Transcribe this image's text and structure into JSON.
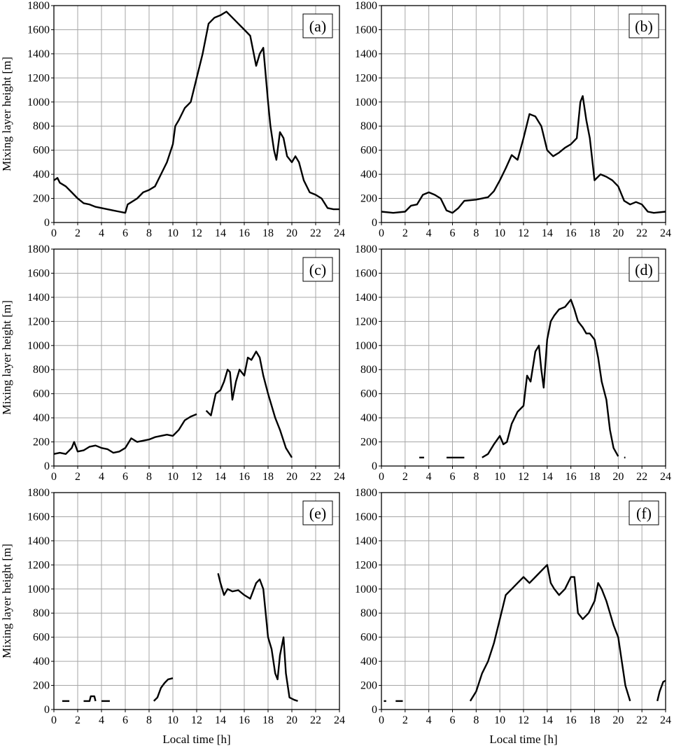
{
  "chart_data": [
    {
      "type": "line",
      "panel_label": "(a)",
      "xlabel": "",
      "ylabel": "Mixing layer height [m]",
      "xlim": [
        0,
        24
      ],
      "ylim": [
        0,
        1800
      ],
      "xticks": [
        "0",
        "2",
        "4",
        "6",
        "8",
        "10",
        "12",
        "14",
        "16",
        "18",
        "20",
        "22",
        "24"
      ],
      "yticks": [
        "0",
        "200",
        "400",
        "600",
        "800",
        "1000",
        "1200",
        "1400",
        "1600",
        "1800"
      ],
      "grid": true,
      "segments": [
        [
          [
            0,
            350
          ],
          [
            0.3,
            370
          ],
          [
            0.5,
            330
          ],
          [
            1,
            300
          ],
          [
            1.5,
            250
          ],
          [
            2,
            200
          ],
          [
            2.5,
            160
          ],
          [
            3,
            150
          ],
          [
            3.5,
            130
          ],
          [
            4,
            120
          ],
          [
            4.5,
            110
          ],
          [
            5,
            100
          ],
          [
            5.5,
            90
          ],
          [
            6,
            80
          ],
          [
            6.2,
            150
          ],
          [
            7,
            200
          ],
          [
            7.5,
            250
          ],
          [
            8,
            270
          ],
          [
            8.5,
            300
          ],
          [
            9,
            400
          ],
          [
            9.5,
            500
          ],
          [
            10,
            650
          ],
          [
            10.2,
            800
          ],
          [
            10.5,
            850
          ],
          [
            11,
            950
          ],
          [
            11.5,
            1000
          ],
          [
            12,
            1200
          ],
          [
            12.5,
            1400
          ],
          [
            13,
            1650
          ],
          [
            13.5,
            1700
          ],
          [
            14,
            1720
          ],
          [
            14.5,
            1750
          ],
          [
            15,
            1700
          ],
          [
            15.5,
            1650
          ],
          [
            16,
            1600
          ],
          [
            16.5,
            1550
          ],
          [
            17,
            1300
          ],
          [
            17.3,
            1400
          ],
          [
            17.6,
            1450
          ],
          [
            18,
            1000
          ],
          [
            18.2,
            800
          ],
          [
            18.5,
            600
          ],
          [
            18.7,
            520
          ],
          [
            19,
            750
          ],
          [
            19.3,
            700
          ],
          [
            19.6,
            550
          ],
          [
            20,
            500
          ],
          [
            20.3,
            550
          ],
          [
            20.6,
            500
          ],
          [
            21,
            350
          ],
          [
            21.5,
            250
          ],
          [
            22,
            230
          ],
          [
            22.5,
            200
          ],
          [
            23,
            120
          ],
          [
            23.5,
            110
          ],
          [
            24,
            110
          ]
        ]
      ]
    },
    {
      "type": "line",
      "panel_label": "(b)",
      "xlabel": "",
      "ylabel": "",
      "xlim": [
        0,
        24
      ],
      "ylim": [
        0,
        1800
      ],
      "xticks": [
        "0",
        "2",
        "4",
        "6",
        "8",
        "10",
        "12",
        "14",
        "16",
        "18",
        "20",
        "22",
        "24"
      ],
      "yticks": [
        "0",
        "200",
        "400",
        "600",
        "800",
        "1000",
        "1200",
        "1400",
        "1600",
        "1800"
      ],
      "grid": true,
      "segments": [
        [
          [
            0,
            90
          ],
          [
            1,
            80
          ],
          [
            2,
            90
          ],
          [
            2.5,
            140
          ],
          [
            3,
            150
          ],
          [
            3.5,
            230
          ],
          [
            4,
            250
          ],
          [
            4.5,
            230
          ],
          [
            5,
            200
          ],
          [
            5.5,
            100
          ],
          [
            6,
            80
          ],
          [
            6.5,
            120
          ],
          [
            7,
            180
          ],
          [
            8,
            190
          ],
          [
            8.5,
            200
          ],
          [
            9,
            210
          ],
          [
            9.5,
            260
          ],
          [
            10,
            350
          ],
          [
            10.5,
            450
          ],
          [
            11,
            560
          ],
          [
            11.5,
            520
          ],
          [
            12,
            700
          ],
          [
            12.5,
            900
          ],
          [
            13,
            880
          ],
          [
            13.5,
            800
          ],
          [
            14,
            600
          ],
          [
            14.5,
            550
          ],
          [
            15,
            580
          ],
          [
            15.5,
            620
          ],
          [
            16,
            650
          ],
          [
            16.5,
            700
          ],
          [
            16.8,
            1000
          ],
          [
            17,
            1050
          ],
          [
            17.3,
            850
          ],
          [
            17.6,
            700
          ],
          [
            18,
            350
          ],
          [
            18.5,
            400
          ],
          [
            19,
            380
          ],
          [
            19.5,
            350
          ],
          [
            20,
            300
          ],
          [
            20.5,
            180
          ],
          [
            21,
            150
          ],
          [
            21.5,
            170
          ],
          [
            22,
            150
          ],
          [
            22.5,
            90
          ],
          [
            23,
            80
          ],
          [
            24,
            90
          ]
        ]
      ]
    },
    {
      "type": "line",
      "panel_label": "(c)",
      "xlabel": "",
      "ylabel": "Mixing layer height [m]",
      "xlim": [
        0,
        24
      ],
      "ylim": [
        0,
        1800
      ],
      "xticks": [
        "0",
        "2",
        "4",
        "6",
        "8",
        "10",
        "12",
        "14",
        "16",
        "18",
        "20",
        "22",
        "24"
      ],
      "yticks": [
        "0",
        "200",
        "400",
        "600",
        "800",
        "1000",
        "1200",
        "1400",
        "1600",
        "1800"
      ],
      "grid": true,
      "segments": [
        [
          [
            0,
            100
          ],
          [
            0.5,
            110
          ],
          [
            1,
            100
          ],
          [
            1.5,
            150
          ],
          [
            1.7,
            200
          ],
          [
            2,
            120
          ],
          [
            2.5,
            130
          ],
          [
            3,
            160
          ],
          [
            3.5,
            170
          ],
          [
            4,
            150
          ],
          [
            4.5,
            140
          ],
          [
            5,
            110
          ],
          [
            5.5,
            120
          ],
          [
            6,
            150
          ],
          [
            6.5,
            230
          ],
          [
            7,
            200
          ],
          [
            7.5,
            210
          ],
          [
            8,
            220
          ],
          [
            8.5,
            240
          ],
          [
            9,
            250
          ],
          [
            9.5,
            260
          ],
          [
            10,
            250
          ],
          [
            10.5,
            300
          ],
          [
            11,
            380
          ],
          [
            11.5,
            410
          ],
          [
            12,
            430
          ]
        ],
        [
          [
            12.8,
            460
          ],
          [
            13.2,
            420
          ],
          [
            13.6,
            600
          ],
          [
            14,
            630
          ],
          [
            14.3,
            700
          ],
          [
            14.6,
            800
          ],
          [
            14.8,
            780
          ],
          [
            15,
            550
          ],
          [
            15.3,
            700
          ],
          [
            15.6,
            800
          ],
          [
            16,
            750
          ],
          [
            16.3,
            900
          ],
          [
            16.6,
            880
          ],
          [
            17,
            950
          ],
          [
            17.3,
            900
          ],
          [
            17.6,
            750
          ],
          [
            18,
            600
          ],
          [
            18.3,
            500
          ],
          [
            18.6,
            400
          ],
          [
            19,
            300
          ],
          [
            19.5,
            150
          ],
          [
            20,
            70
          ]
        ]
      ]
    },
    {
      "type": "line",
      "panel_label": "(d)",
      "xlabel": "",
      "ylabel": "",
      "xlim": [
        0,
        24
      ],
      "ylim": [
        0,
        1800
      ],
      "xticks": [
        "0",
        "2",
        "4",
        "6",
        "8",
        "10",
        "12",
        "14",
        "16",
        "18",
        "20",
        "22",
        "24"
      ],
      "yticks": [
        "0",
        "200",
        "400",
        "600",
        "800",
        "1000",
        "1200",
        "1400",
        "1600",
        "1800"
      ],
      "grid": true,
      "segments": [
        [
          [
            3.2,
            70
          ],
          [
            3.6,
            70
          ]
        ],
        [
          [
            5.5,
            70
          ],
          [
            7,
            70
          ]
        ],
        [
          [
            8.5,
            70
          ],
          [
            9,
            100
          ],
          [
            9.5,
            180
          ],
          [
            10,
            250
          ],
          [
            10.3,
            180
          ],
          [
            10.6,
            200
          ],
          [
            11,
            350
          ],
          [
            11.5,
            450
          ],
          [
            12,
            500
          ],
          [
            12.3,
            750
          ],
          [
            12.6,
            700
          ],
          [
            13,
            950
          ],
          [
            13.3,
            1000
          ],
          [
            13.5,
            800
          ],
          [
            13.7,
            650
          ],
          [
            14,
            1050
          ],
          [
            14.3,
            1200
          ],
          [
            14.6,
            1250
          ],
          [
            15,
            1300
          ],
          [
            15.5,
            1320
          ],
          [
            16,
            1380
          ],
          [
            16.3,
            1300
          ],
          [
            16.6,
            1200
          ],
          [
            17,
            1150
          ],
          [
            17.3,
            1100
          ],
          [
            17.6,
            1100
          ],
          [
            18,
            1050
          ],
          [
            18.3,
            900
          ],
          [
            18.6,
            700
          ],
          [
            19,
            550
          ],
          [
            19.3,
            300
          ],
          [
            19.6,
            150
          ],
          [
            20,
            80
          ]
        ],
        [
          [
            20.5,
            70
          ],
          [
            20.6,
            70
          ]
        ]
      ]
    },
    {
      "type": "line",
      "panel_label": "(e)",
      "xlabel": "Local time [h]",
      "ylabel": "Mixing layer height [m]",
      "xlim": [
        0,
        24
      ],
      "ylim": [
        0,
        1800
      ],
      "xticks": [
        "0",
        "2",
        "4",
        "6",
        "8",
        "10",
        "12",
        "14",
        "16",
        "18",
        "20",
        "22",
        "24"
      ],
      "yticks": [
        "0",
        "200",
        "400",
        "600",
        "800",
        "1000",
        "1200",
        "1400",
        "1600",
        "1800"
      ],
      "grid": true,
      "segments": [
        [
          [
            0.7,
            70
          ],
          [
            1.3,
            70
          ]
        ],
        [
          [
            2.5,
            70
          ],
          [
            3,
            70
          ],
          [
            3.1,
            110
          ],
          [
            3.4,
            110
          ],
          [
            3.5,
            70
          ]
        ],
        [
          [
            4,
            70
          ],
          [
            4.7,
            70
          ]
        ],
        [
          [
            8.4,
            70
          ],
          [
            8.7,
            100
          ],
          [
            9,
            180
          ],
          [
            9.3,
            220
          ],
          [
            9.6,
            250
          ],
          [
            10,
            260
          ]
        ],
        [
          [
            13.8,
            1130
          ],
          [
            14,
            1050
          ],
          [
            14.3,
            950
          ],
          [
            14.6,
            1000
          ],
          [
            15,
            980
          ],
          [
            15.5,
            990
          ],
          [
            16,
            950
          ],
          [
            16.5,
            920
          ],
          [
            17,
            1050
          ],
          [
            17.3,
            1080
          ],
          [
            17.6,
            1000
          ],
          [
            18,
            600
          ],
          [
            18.3,
            500
          ],
          [
            18.6,
            300
          ],
          [
            18.8,
            250
          ],
          [
            19,
            450
          ],
          [
            19.3,
            600
          ],
          [
            19.5,
            300
          ],
          [
            19.8,
            100
          ],
          [
            20.2,
            80
          ],
          [
            20.5,
            70
          ]
        ]
      ]
    },
    {
      "type": "line",
      "panel_label": "(f)",
      "xlabel": "Local time [h]",
      "ylabel": "",
      "xlim": [
        0,
        24
      ],
      "ylim": [
        0,
        1800
      ],
      "xticks": [
        "0",
        "2",
        "4",
        "6",
        "8",
        "10",
        "12",
        "14",
        "16",
        "18",
        "20",
        "22",
        "24"
      ],
      "yticks": [
        "0",
        "200",
        "400",
        "600",
        "800",
        "1000",
        "1200",
        "1400",
        "1600",
        "1800"
      ],
      "grid": true,
      "segments": [
        [
          [
            0.2,
            70
          ],
          [
            0.4,
            70
          ]
        ],
        [
          [
            1.2,
            70
          ],
          [
            1.8,
            70
          ]
        ],
        [
          [
            7.5,
            70
          ],
          [
            8,
            150
          ],
          [
            8.5,
            300
          ],
          [
            9,
            400
          ],
          [
            9.5,
            550
          ],
          [
            10,
            750
          ],
          [
            10.5,
            950
          ],
          [
            11,
            1000
          ],
          [
            11.5,
            1050
          ],
          [
            12,
            1100
          ],
          [
            12.5,
            1050
          ],
          [
            13,
            1100
          ],
          [
            13.5,
            1150
          ],
          [
            14,
            1200
          ],
          [
            14.3,
            1050
          ],
          [
            14.6,
            1000
          ],
          [
            15,
            950
          ],
          [
            15.5,
            1000
          ],
          [
            16,
            1100
          ],
          [
            16.3,
            1100
          ],
          [
            16.6,
            800
          ],
          [
            17,
            750
          ],
          [
            17.5,
            800
          ],
          [
            18,
            900
          ],
          [
            18.3,
            1050
          ],
          [
            18.6,
            1000
          ],
          [
            19,
            900
          ],
          [
            19.3,
            800
          ],
          [
            19.6,
            700
          ],
          [
            20,
            600
          ],
          [
            20.3,
            400
          ],
          [
            20.6,
            200
          ],
          [
            21,
            70
          ]
        ],
        [
          [
            23.3,
            70
          ],
          [
            23.5,
            150
          ],
          [
            23.8,
            230
          ],
          [
            24,
            240
          ]
        ]
      ]
    }
  ]
}
